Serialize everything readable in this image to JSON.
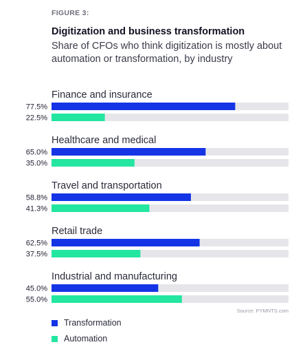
{
  "figure_label": "FIGURE 3:",
  "title": "Digitization and business transformation",
  "subtitle": "Share of CFOs who think digitization is mostly about automation or transformation, by industry",
  "source": "Source: PYMNTS.com",
  "colors": {
    "transformation": "#1434e6",
    "automation": "#23e6a0",
    "track": "#e6e6ea"
  },
  "chart_data": {
    "type": "bar",
    "orientation": "horizontal",
    "title": "Digitization and business transformation",
    "subtitle": "Share of CFOs who think digitization is mostly about automation or transformation, by industry",
    "categories": [
      "Finance and insurance",
      "Healthcare and medical",
      "Travel and transportation",
      "Retail trade",
      "Industrial and manufacturing"
    ],
    "series": [
      {
        "name": "Transformation",
        "values": [
          77.5,
          65.0,
          58.8,
          62.5,
          45.0
        ],
        "labels": [
          "77.5%",
          "65.0%",
          "58.8%",
          "62.5%",
          "45.0%"
        ]
      },
      {
        "name": "Automation",
        "values": [
          22.5,
          35.0,
          41.3,
          37.5,
          55.0
        ],
        "labels": [
          "22.5%",
          "35.0%",
          "41.3%",
          "37.5%",
          "55.0%"
        ]
      }
    ],
    "xlim": [
      0,
      100
    ],
    "grid": false,
    "legend": "bottom-left"
  }
}
